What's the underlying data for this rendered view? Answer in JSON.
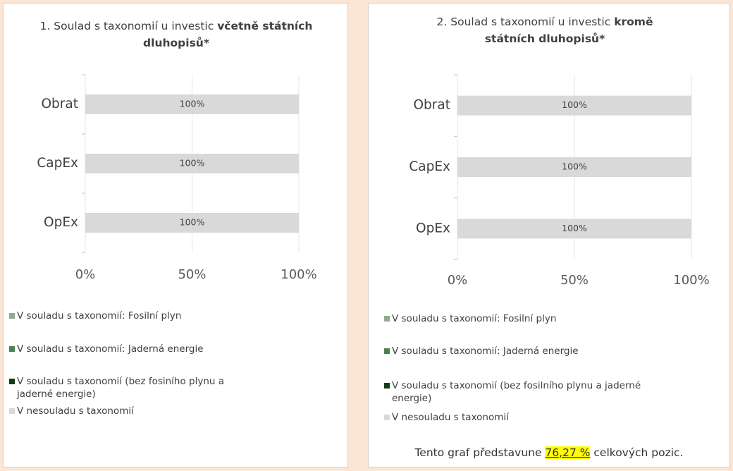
{
  "chart_data": [
    {
      "type": "stacked-bar-horizontal",
      "title": [
        "1. Soulad s taxonomií u investic",
        "včetně státních dluhopisů*"
      ],
      "categories": [
        "Obrat",
        "CapEx",
        "OpEx"
      ],
      "series": [
        {
          "name": "V souladu s taxonomií: Fosilní plyn",
          "color": "#92a98f",
          "values": [
            0,
            0,
            0
          ]
        },
        {
          "name": "V souladu s taxonomií: Jaderná energie",
          "color": "#4f7f50",
          "values": [
            0,
            0,
            0
          ]
        },
        {
          "name": "V souladu s taxonomií (bez fosiního plynu a jaderné energie)",
          "color": "#0f3d16",
          "values": [
            0,
            0,
            0
          ]
        },
        {
          "name": "V nesouladu s taxonomií",
          "color": "#d9d9d9",
          "values": [
            100,
            100,
            100
          ],
          "value_labels": [
            "100%",
            "100%",
            "100%"
          ]
        }
      ],
      "xlim": [
        0,
        100
      ],
      "xticks": [
        {
          "value": 0,
          "label": "0%"
        },
        {
          "value": 50,
          "label": "50%"
        },
        {
          "value": 100,
          "label": "100%"
        }
      ]
    },
    {
      "type": "stacked-bar-horizontal",
      "title": [
        "2. Soulad s taxonomií u investic",
        "kromě státních dluhopisů*"
      ],
      "categories": [
        "Obrat",
        "CapEx",
        "OpEx"
      ],
      "series": [
        {
          "name": "V souladu s taxonomií: Fosilní plyn",
          "color": "#92a98f",
          "values": [
            0,
            0,
            0
          ]
        },
        {
          "name": "V souladu s taxonomií: Jaderná energie",
          "color": "#4f7f50",
          "values": [
            0,
            0,
            0
          ]
        },
        {
          "name": "V souladu s taxonomií (bez fosilního plynu a jaderné energie)",
          "color": "#0f3d16",
          "values": [
            0,
            0,
            0
          ]
        },
        {
          "name": "V nesouladu s taxonomií",
          "color": "#d9d9d9",
          "values": [
            100,
            100,
            100
          ],
          "value_labels": [
            "100%",
            "100%",
            "100%"
          ]
        }
      ],
      "xlim": [
        0,
        100
      ],
      "xticks": [
        {
          "value": 0,
          "label": "0%"
        },
        {
          "value": 50,
          "label": "50%"
        },
        {
          "value": 100,
          "label": "100%"
        }
      ],
      "note": [
        "Tento graf představune",
        "76,27 %",
        "celkových pozic."
      ]
    }
  ]
}
